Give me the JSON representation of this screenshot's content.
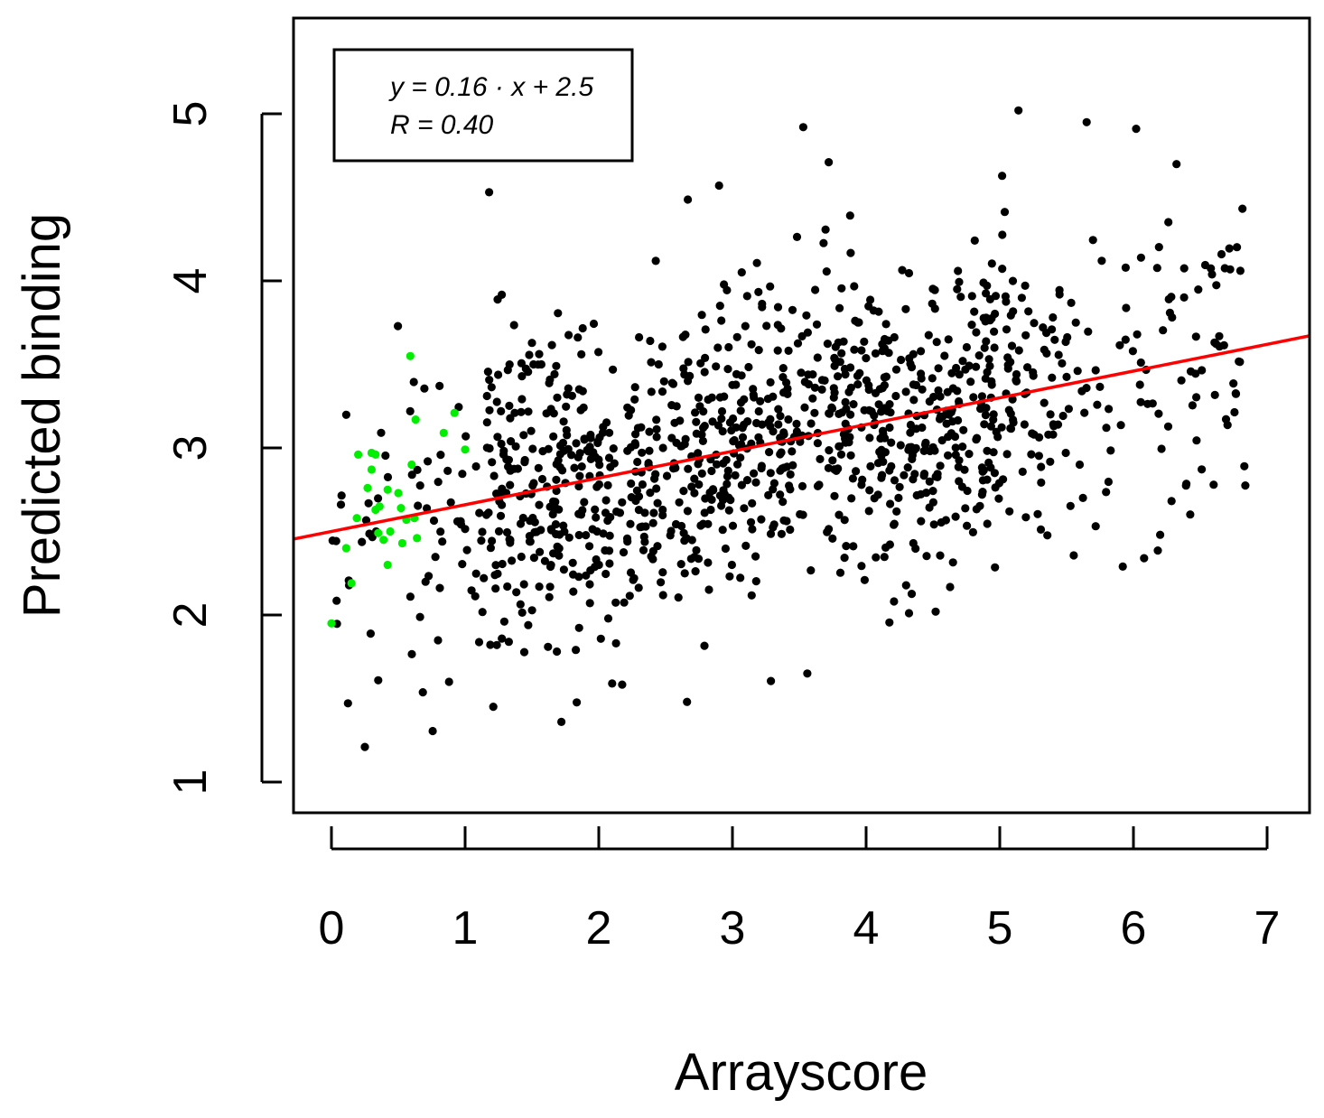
{
  "chart_data": {
    "type": "scatter",
    "title": "",
    "xlabel": "Arrayscore",
    "ylabel": "Predicted binding",
    "xlim": [
      -0.3,
      7.3
    ],
    "ylim": [
      0.83,
      5.5
    ],
    "x_ticks": [
      0,
      1,
      2,
      3,
      4,
      5,
      6,
      7
    ],
    "y_ticks": [
      1,
      2,
      3,
      4,
      5
    ],
    "grid": false,
    "legend": {
      "placement": "top-left",
      "lines": [
        "y = 0.16 · x + 2.5",
        "R = 0.40"
      ]
    },
    "regression": {
      "slope": 0.16,
      "intercept": 2.5,
      "r": 0.4,
      "color": "#ff0000"
    },
    "colors": {
      "points": "#000000",
      "highlight": "#00ee00",
      "fit": "#ff0000"
    },
    "highlight_series": {
      "color": "#00ee00",
      "points": [
        [
          0.0,
          1.95
        ],
        [
          0.11,
          2.4
        ],
        [
          0.15,
          2.19
        ],
        [
          0.19,
          2.58
        ],
        [
          0.2,
          2.96
        ],
        [
          0.27,
          2.76
        ],
        [
          0.3,
          2.87
        ],
        [
          0.3,
          2.97
        ],
        [
          0.33,
          2.96
        ],
        [
          0.33,
          2.63
        ],
        [
          0.35,
          2.49
        ],
        [
          0.36,
          2.65
        ],
        [
          0.39,
          2.45
        ],
        [
          0.42,
          2.3
        ],
        [
          0.42,
          2.75
        ],
        [
          0.44,
          2.5
        ],
        [
          0.5,
          2.73
        ],
        [
          0.52,
          2.64
        ],
        [
          0.53,
          2.43
        ],
        [
          0.56,
          2.57
        ],
        [
          0.59,
          3.55
        ],
        [
          0.6,
          2.9
        ],
        [
          0.62,
          2.58
        ],
        [
          0.63,
          3.17
        ],
        [
          0.64,
          2.46
        ],
        [
          0.84,
          3.09
        ],
        [
          0.92,
          3.21
        ],
        [
          1.0,
          2.99
        ]
      ]
    },
    "series": [
      {
        "color": "#000000",
        "count": 1200,
        "x_range": [
          0.0,
          6.85
        ],
        "y_range": [
          1.2,
          5.03
        ]
      }
    ],
    "sample_points": [
      [
        0.25,
        1.21
      ],
      [
        2.66,
        1.48
      ],
      [
        1.72,
        1.36
      ],
      [
        0.88,
        1.6
      ],
      [
        2.1,
        1.59
      ],
      [
        3.56,
        1.65
      ],
      [
        4.52,
        2.02
      ],
      [
        3.53,
        4.92
      ],
      [
        5.14,
        5.02
      ],
      [
        5.65,
        4.95
      ],
      [
        6.02,
        4.91
      ],
      [
        1.18,
        4.53
      ],
      [
        2.9,
        4.57
      ],
      [
        3.72,
        4.71
      ],
      [
        6.8,
        4.06
      ],
      [
        6.83,
        2.89
      ],
      [
        6.6,
        2.78
      ],
      [
        6.08,
        2.34
      ],
      [
        5.92,
        2.29
      ],
      [
        6.2,
        2.48
      ]
    ]
  }
}
